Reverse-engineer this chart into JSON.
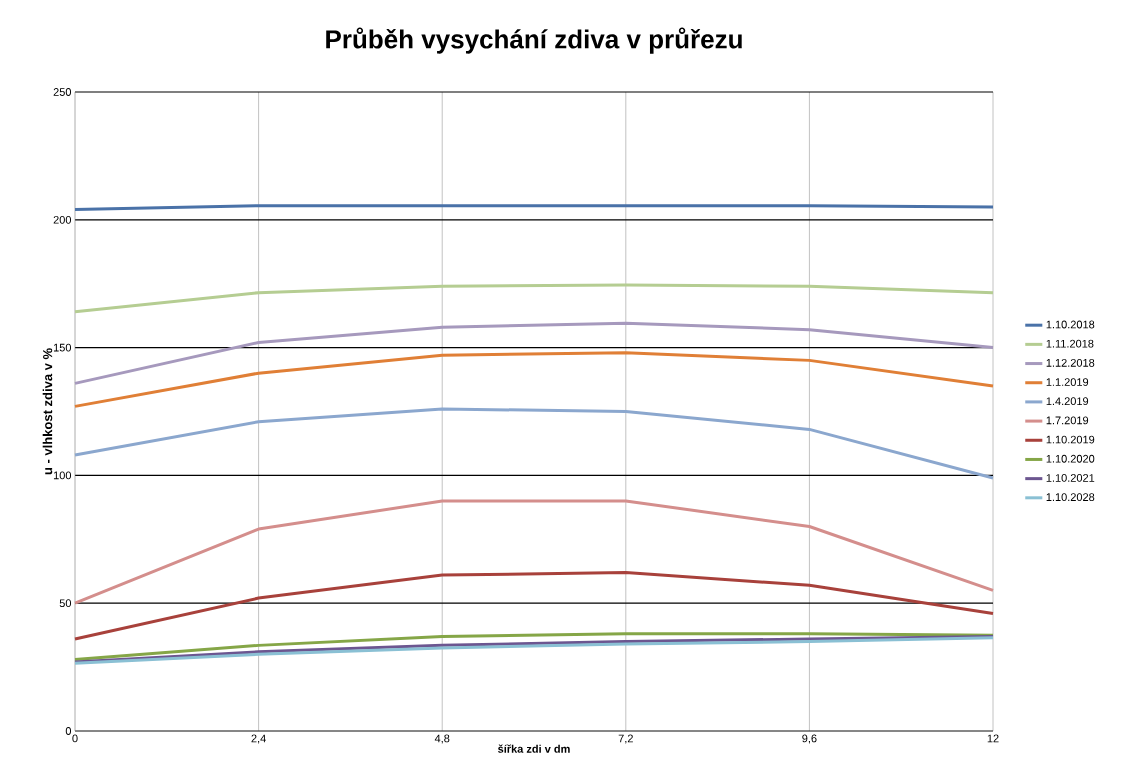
{
  "chart_data": {
    "type": "line",
    "title": "Průběh vysychání zdiva v průřezu",
    "xlabel": "šířka zdi v dm",
    "ylabel": "u - vlhkost zdiva v %",
    "x": [
      0,
      2.4,
      4.8,
      7.2,
      9.6,
      12
    ],
    "xlim": [
      0,
      12
    ],
    "xticks": [
      0,
      {
        "value": 2.4,
        "label": "2,4"
      },
      {
        "value": 4.8,
        "label": "4,8"
      },
      {
        "value": 7.2,
        "label": "7,2"
      },
      {
        "value": 9.6,
        "label": "9,6"
      },
      12
    ],
    "ylim": [
      0,
      250
    ],
    "yticks": [
      0,
      50,
      100,
      150,
      200,
      250
    ],
    "grid": true,
    "legend": "right",
    "marker": "none",
    "line_style": "solid",
    "series": [
      {
        "name": "1.10.2018",
        "color": "#4a72a8",
        "values": [
          204,
          205.5,
          205.5,
          205.5,
          205.5,
          205
        ]
      },
      {
        "name": "1.11.2018",
        "color": "#b5cd92",
        "values": [
          164,
          171.5,
          174,
          174.5,
          174,
          171.5
        ]
      },
      {
        "name": "1.12.2018",
        "color": "#a699bd",
        "values": [
          136,
          152,
          158,
          159.5,
          157,
          150
        ]
      },
      {
        "name": "1.1.2019",
        "color": "#e07f36",
        "values": [
          127,
          140,
          147,
          148,
          145,
          135
        ]
      },
      {
        "name": "1.4.2019",
        "color": "#8ba7ce",
        "values": [
          108,
          121,
          126,
          125,
          118,
          99
        ]
      },
      {
        "name": "1.7.2019",
        "color": "#d48e8c",
        "values": [
          50,
          79,
          90,
          90,
          80,
          55
        ]
      },
      {
        "name": "1.10.2019",
        "color": "#a8413b",
        "values": [
          36,
          52,
          61,
          62,
          57,
          46
        ]
      },
      {
        "name": "1.10.2020",
        "color": "#85a647",
        "values": [
          28,
          33.5,
          37,
          38,
          38,
          37.5
        ]
      },
      {
        "name": "1.10.2021",
        "color": "#6c5690",
        "values": [
          27,
          31,
          33.5,
          35,
          36,
          37
        ]
      },
      {
        "name": "1.10.2028",
        "color": "#8ac0d4",
        "values": [
          26.5,
          30,
          32.5,
          34,
          35,
          36.5
        ]
      }
    ]
  }
}
